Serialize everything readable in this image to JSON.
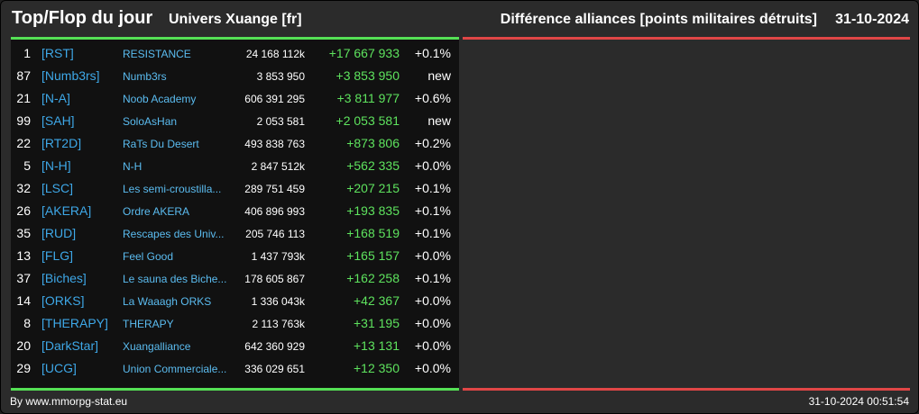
{
  "header": {
    "title": "Top/Flop du jour",
    "universe": "Univers Xuange [fr]",
    "subtitle": "Différence alliances [points militaires détruits]",
    "date": "31-10-2024"
  },
  "colors": {
    "tag": "#3ea8e8",
    "name": "#5bbcf0",
    "positive_diff": "#5ee35e",
    "top_bar": "#55e055",
    "flop_bar": "#e04646"
  },
  "top_rows": [
    {
      "rank": "1",
      "tag": "[RST]",
      "name": "RESISTANCE",
      "points": "24 168 112k",
      "diff": "+17 667 933",
      "pct": "+0.1%"
    },
    {
      "rank": "87",
      "tag": "[Numb3rs]",
      "name": "Numb3rs",
      "points": "3 853 950",
      "diff": "+3 853 950",
      "pct": "new"
    },
    {
      "rank": "21",
      "tag": "[N-A]",
      "name": "Noob Academy",
      "points": "606 391 295",
      "diff": "+3 811 977",
      "pct": "+0.6%"
    },
    {
      "rank": "99",
      "tag": "[SAH]",
      "name": "SoloAsHan",
      "points": "2 053 581",
      "diff": "+2 053 581",
      "pct": "new"
    },
    {
      "rank": "22",
      "tag": "[RT2D]",
      "name": "RaTs Du Desert",
      "points": "493 838 763",
      "diff": "+873 806",
      "pct": "+0.2%"
    },
    {
      "rank": "5",
      "tag": "[N-H]",
      "name": "N-H",
      "points": "2 847 512k",
      "diff": "+562 335",
      "pct": "+0.0%"
    },
    {
      "rank": "32",
      "tag": "[LSC]",
      "name": "Les semi-croustilla...",
      "points": "289 751 459",
      "diff": "+207 215",
      "pct": "+0.1%"
    },
    {
      "rank": "26",
      "tag": "[AKERA]",
      "name": "Ordre AKERA",
      "points": "406 896 993",
      "diff": "+193 835",
      "pct": "+0.1%"
    },
    {
      "rank": "35",
      "tag": "[RUD]",
      "name": "Rescapes des Univ...",
      "points": "205 746 113",
      "diff": "+168 519",
      "pct": "+0.1%"
    },
    {
      "rank": "13",
      "tag": "[FLG]",
      "name": "Feel Good",
      "points": "1 437 793k",
      "diff": "+165 157",
      "pct": "+0.0%"
    },
    {
      "rank": "37",
      "tag": "[Biches]",
      "name": "Le sauna des Biche...",
      "points": "178 605 867",
      "diff": "+162 258",
      "pct": "+0.1%"
    },
    {
      "rank": "14",
      "tag": "[ORKS]",
      "name": "La Waaagh ORKS",
      "points": "1 336 043k",
      "diff": "+42 367",
      "pct": "+0.0%"
    },
    {
      "rank": "8",
      "tag": "[THERAPY]",
      "name": "THERAPY",
      "points": "2 113 763k",
      "diff": "+31 195",
      "pct": "+0.0%"
    },
    {
      "rank": "20",
      "tag": "[DarkStar]",
      "name": "Xuangalliance",
      "points": "642 360 929",
      "diff": "+13 131",
      "pct": "+0.0%"
    },
    {
      "rank": "29",
      "tag": "[UCG]",
      "name": "Union Commerciale...",
      "points": "336 029 651",
      "diff": "+12 350",
      "pct": "+0.0%"
    }
  ],
  "footer": {
    "credit": "By www.mmorpg-stat.eu",
    "timestamp": "31-10-2024 00:51:54"
  }
}
